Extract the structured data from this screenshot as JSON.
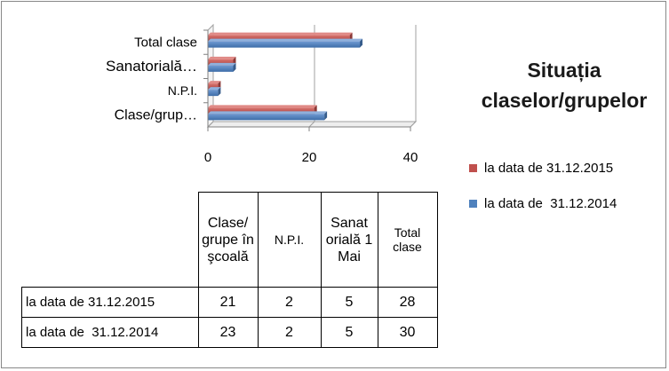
{
  "chart_data": {
    "type": "bar",
    "orientation": "horizontal",
    "title": "Situația claselor/grupelor",
    "categories": [
      "Clase/grupe în școală",
      "N.P.I.",
      "Sanatorială 1 Mai",
      "Total clase"
    ],
    "category_tick_labels": [
      "Clase/grup…",
      "N.P.I.",
      "Sanatorială…",
      "Total clase"
    ],
    "series": [
      {
        "name": "la data de 31.12.2015",
        "values": [
          21,
          2,
          5,
          28
        ],
        "color": "#c0504d"
      },
      {
        "name": "la data de  31.12.2014",
        "values": [
          23,
          2,
          5,
          30
        ],
        "color": "#4f81bd"
      }
    ],
    "xlim": [
      0,
      40
    ],
    "x_ticks": [
      0,
      20,
      40
    ],
    "grid": true,
    "legend_position": "right",
    "style_3d": true
  },
  "title_lines": [
    "Situația",
    "claselor/grupelor"
  ],
  "table": {
    "headers": [
      "Clase/ grupe în şcoală",
      "N.P.I.",
      "Sanat orială 1 Mai",
      "Total clase"
    ],
    "rows": [
      {
        "label": "la data de 31.12.2015",
        "values": [
          "21",
          "2",
          "5",
          "28"
        ],
        "color": "#c0504d"
      },
      {
        "label": "la data de  31.12.2014",
        "values": [
          "23",
          "2",
          "5",
          "30"
        ],
        "color": "#4f81bd"
      }
    ]
  }
}
